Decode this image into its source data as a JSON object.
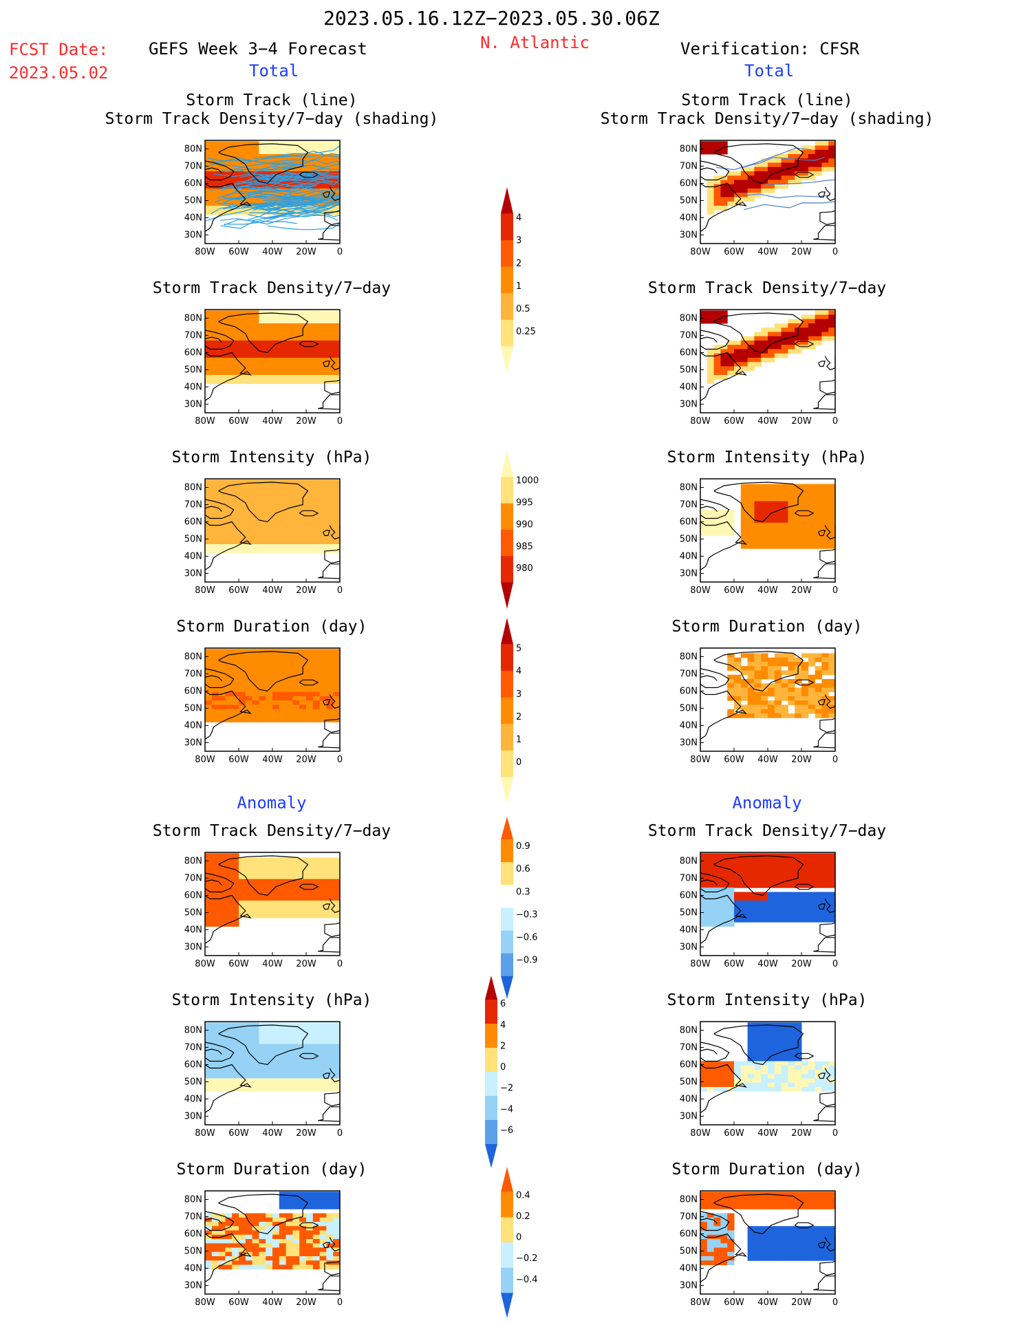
{
  "header": {
    "period": "2023.05.16.12Z−2023.05.30.06Z",
    "region": "N. Atlantic",
    "fcst_label": "FCST Date:",
    "fcst_date": "2023.05.02",
    "forecast_title": "GEFS Week 3−4 Forecast",
    "verification_title": "Verification: CFSR",
    "total_left": "Total",
    "total_right": "Total"
  },
  "sections": {
    "anomaly_left": "Anomaly",
    "anomaly_right": "Anomaly"
  },
  "panel_titles": {
    "track_line": "Storm Track (line)",
    "track_shading": "Storm Track Density/7−day (shading)",
    "density": "Storm Track Density/7−day",
    "intensity": "Storm Intensity (hPa)",
    "duration": "Storm Duration (day)"
  },
  "axes": {
    "lat_labels": [
      "80N",
      "70N",
      "60N",
      "50N",
      "40N",
      "30N"
    ],
    "lon_labels": [
      "80W",
      "60W",
      "40W",
      "20W",
      "0"
    ]
  },
  "colorbars": {
    "density_total": [
      "4",
      "3",
      "2",
      "1",
      "0.5",
      "0.25"
    ],
    "intensity_total": [
      "1000",
      "995",
      "990",
      "985",
      "980"
    ],
    "duration_total": [
      "5",
      "4",
      "3",
      "2",
      "1",
      "0"
    ],
    "density_anom": [
      "0.9",
      "0.6",
      "0.3",
      "−0.3",
      "−0.6",
      "−0.9"
    ],
    "intensity_anom": [
      "6",
      "4",
      "2",
      "0",
      "−2",
      "−4",
      "−6"
    ],
    "duration_anom": [
      "0.4",
      "0.2",
      "0",
      "−0.2",
      "−0.4"
    ]
  },
  "colors": {
    "red_text": "#ff2a2a",
    "blue_text": "#1e3cff",
    "warm_scale": [
      "#fff8b4",
      "#ffe27a",
      "#ffb43c",
      "#ff8c00",
      "#ff5a00",
      "#e62800",
      "#b40000"
    ],
    "cool_scale": [
      "#c8f0ff",
      "#96d2f5",
      "#5aa0eb",
      "#1e64dc"
    ]
  }
}
